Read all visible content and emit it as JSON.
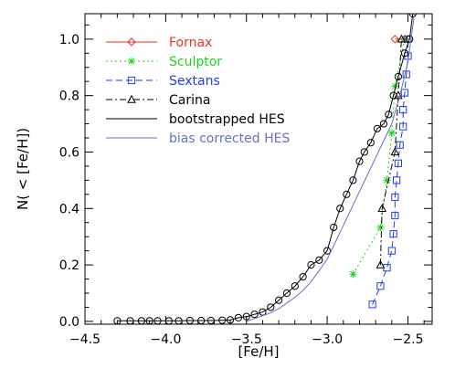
{
  "chart_data": {
    "type": "line",
    "title": "",
    "xlabel": "[Fe/H]",
    "ylabel": "N( < [Fe/H])",
    "xlim": [
      -4.5,
      -2.35
    ],
    "ylim": [
      -0.01,
      1.09
    ],
    "xticks": [
      -4.5,
      -4.0,
      -3.5,
      -3.0,
      -2.5
    ],
    "xtick_labels": [
      "−4.5",
      "−4.0",
      "−3.5",
      "−3.0",
      "−2.5"
    ],
    "yticks": [
      0.0,
      0.2,
      0.4,
      0.6,
      0.8,
      1.0
    ],
    "ytick_labels": [
      "0.0",
      "0.2",
      "0.4",
      "0.6",
      "0.8",
      "1.0"
    ],
    "legend_position": "top-left",
    "series": [
      {
        "name": "Fornax",
        "color": "#e8332a",
        "line": "solid",
        "marker": "diamond",
        "points": [
          [
            -2.58,
            1.0
          ],
          [
            -2.52,
            1.0
          ]
        ]
      },
      {
        "name": "Sculptor",
        "color": "#1fd41f",
        "line": "dotted",
        "marker": "asterisk",
        "points": [
          [
            -2.84,
            0.167
          ],
          [
            -2.67,
            0.333
          ],
          [
            -2.63,
            0.5
          ],
          [
            -2.6,
            0.667
          ],
          [
            -2.58,
            0.833
          ],
          [
            -2.52,
            1.0
          ]
        ]
      },
      {
        "name": "Sextans",
        "color": "#1f3ee8",
        "line": "dashed",
        "marker": "square",
        "points": [
          [
            -2.72,
            0.06
          ],
          [
            -2.67,
            0.125
          ],
          [
            -2.63,
            0.19
          ],
          [
            -2.6,
            0.25
          ],
          [
            -2.59,
            0.31
          ],
          [
            -2.58,
            0.375
          ],
          [
            -2.58,
            0.44
          ],
          [
            -2.57,
            0.5
          ],
          [
            -2.56,
            0.56
          ],
          [
            -2.55,
            0.625
          ],
          [
            -2.53,
            0.69
          ],
          [
            -2.53,
            0.75
          ],
          [
            -2.52,
            0.81
          ],
          [
            -2.51,
            0.875
          ],
          [
            -2.5,
            0.94
          ],
          [
            -2.5,
            1.0
          ]
        ]
      },
      {
        "name": "Carina",
        "color": "#000000",
        "line": "dashdot",
        "marker": "triangle",
        "points": [
          [
            -2.67,
            0.2
          ],
          [
            -2.66,
            0.4
          ],
          [
            -2.58,
            0.6
          ],
          [
            -2.56,
            0.8
          ],
          [
            -2.54,
            1.0
          ]
        ]
      },
      {
        "name": "bootstrapped HES",
        "color": "#000000",
        "line": "solid",
        "marker": "circle",
        "points": [
          [
            -4.3,
            0.002
          ],
          [
            -4.22,
            0.002
          ],
          [
            -4.15,
            0.002
          ],
          [
            -4.1,
            0.002
          ],
          [
            -4.05,
            0.002
          ],
          [
            -3.98,
            0.002
          ],
          [
            -3.92,
            0.002
          ],
          [
            -3.85,
            0.003
          ],
          [
            -3.78,
            0.003
          ],
          [
            -3.72,
            0.003
          ],
          [
            -3.65,
            0.004
          ],
          [
            -3.6,
            0.005
          ],
          [
            -3.55,
            0.013
          ],
          [
            -3.5,
            0.017
          ],
          [
            -3.45,
            0.025
          ],
          [
            -3.4,
            0.033
          ],
          [
            -3.35,
            0.05
          ],
          [
            -3.3,
            0.075
          ],
          [
            -3.25,
            0.1
          ],
          [
            -3.2,
            0.125
          ],
          [
            -3.15,
            0.158
          ],
          [
            -3.1,
            0.2
          ],
          [
            -3.05,
            0.217
          ],
          [
            -3.0,
            0.25
          ],
          [
            -2.96,
            0.333
          ],
          [
            -2.92,
            0.4
          ],
          [
            -2.88,
            0.45
          ],
          [
            -2.84,
            0.5
          ],
          [
            -2.8,
            0.567
          ],
          [
            -2.77,
            0.6
          ],
          [
            -2.73,
            0.633
          ],
          [
            -2.69,
            0.683
          ],
          [
            -2.65,
            0.7
          ],
          [
            -2.62,
            0.733
          ],
          [
            -2.59,
            0.8
          ],
          [
            -2.56,
            0.867
          ],
          [
            -2.52,
            0.95
          ],
          [
            -2.49,
            1.0
          ],
          [
            -2.47,
            1.09
          ]
        ]
      },
      {
        "name": "bias corrected HES",
        "color": "#6670c8",
        "line": "solid",
        "marker": "none",
        "points": [
          [
            -3.5,
            0.0
          ],
          [
            -3.45,
            0.01
          ],
          [
            -3.4,
            0.02
          ],
          [
            -3.35,
            0.03
          ],
          [
            -3.3,
            0.045
          ],
          [
            -3.25,
            0.065
          ],
          [
            -3.2,
            0.085
          ],
          [
            -3.15,
            0.11
          ],
          [
            -3.1,
            0.14
          ],
          [
            -3.05,
            0.18
          ],
          [
            -3.0,
            0.22
          ],
          [
            -2.95,
            0.28
          ],
          [
            -2.9,
            0.34
          ],
          [
            -2.85,
            0.4
          ],
          [
            -2.8,
            0.46
          ],
          [
            -2.75,
            0.52
          ],
          [
            -2.7,
            0.58
          ],
          [
            -2.65,
            0.64
          ],
          [
            -2.6,
            0.7
          ],
          [
            -2.55,
            0.8
          ],
          [
            -2.5,
            0.92
          ],
          [
            -2.46,
            1.09
          ]
        ]
      }
    ]
  }
}
